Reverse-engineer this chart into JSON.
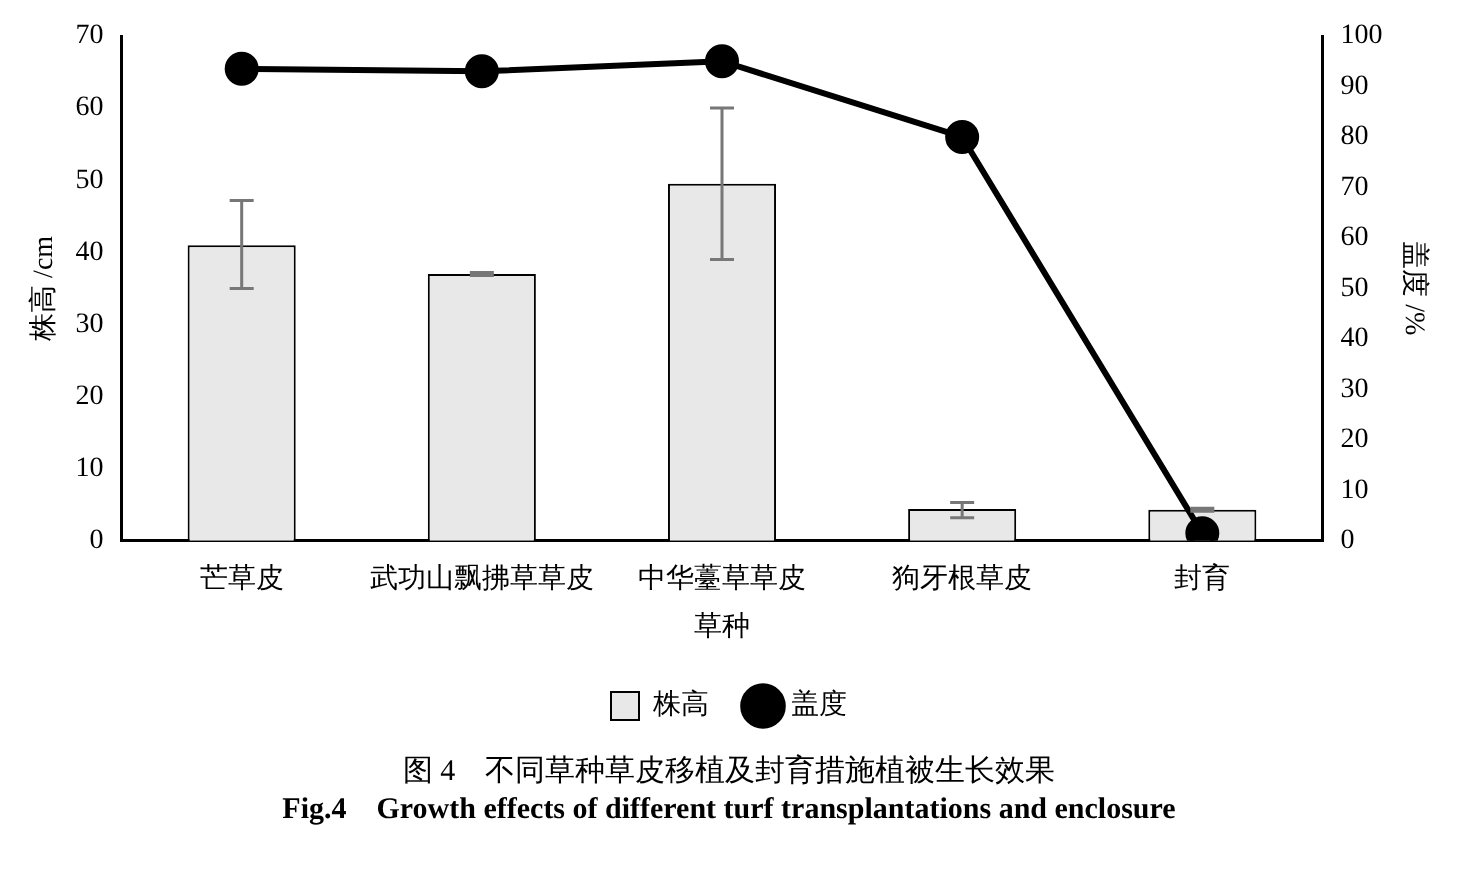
{
  "chart_data": {
    "type": "bar",
    "title": "图 4　不同草种草皮移植及封育措施植被生长效果",
    "subtitle": "Fig.4　Growth effects of different turf transplantations and enclosure",
    "xlabel": "草种",
    "ylabel": "株高 /cm",
    "y2label": "盖度 /%",
    "categories": [
      "芒草皮",
      "武功山飘拂草草皮",
      "中华薹草草皮",
      "狗牙根草皮",
      "封育"
    ],
    "series": [
      {
        "name": "株高",
        "color": "#e8e8e8",
        "values": [
          41,
          37,
          49.5,
          4.4,
          4.3
        ],
        "errors": [
          [
            35,
            47.2
          ],
          0.2,
          [
            39,
            60
          ],
          [
            3.2,
            5.3
          ],
          0.2
        ]
      },
      {
        "name": "盖度",
        "type": "line",
        "axis": "y2",
        "color": "#000000",
        "values": [
          93.5,
          93,
          95,
          80,
          1.5
        ]
      }
    ],
    "ylim": [
      0,
      70
    ],
    "yticks": [
      0,
      10,
      20,
      30,
      40,
      50,
      60,
      70
    ],
    "y2lim": [
      0,
      100
    ],
    "y2ticks": [
      0,
      10,
      20,
      30,
      40,
      50,
      60,
      70,
      80,
      90,
      100
    ],
    "grid": false,
    "legend": "bottom",
    "marker": "circle",
    "line_style": "solid"
  }
}
